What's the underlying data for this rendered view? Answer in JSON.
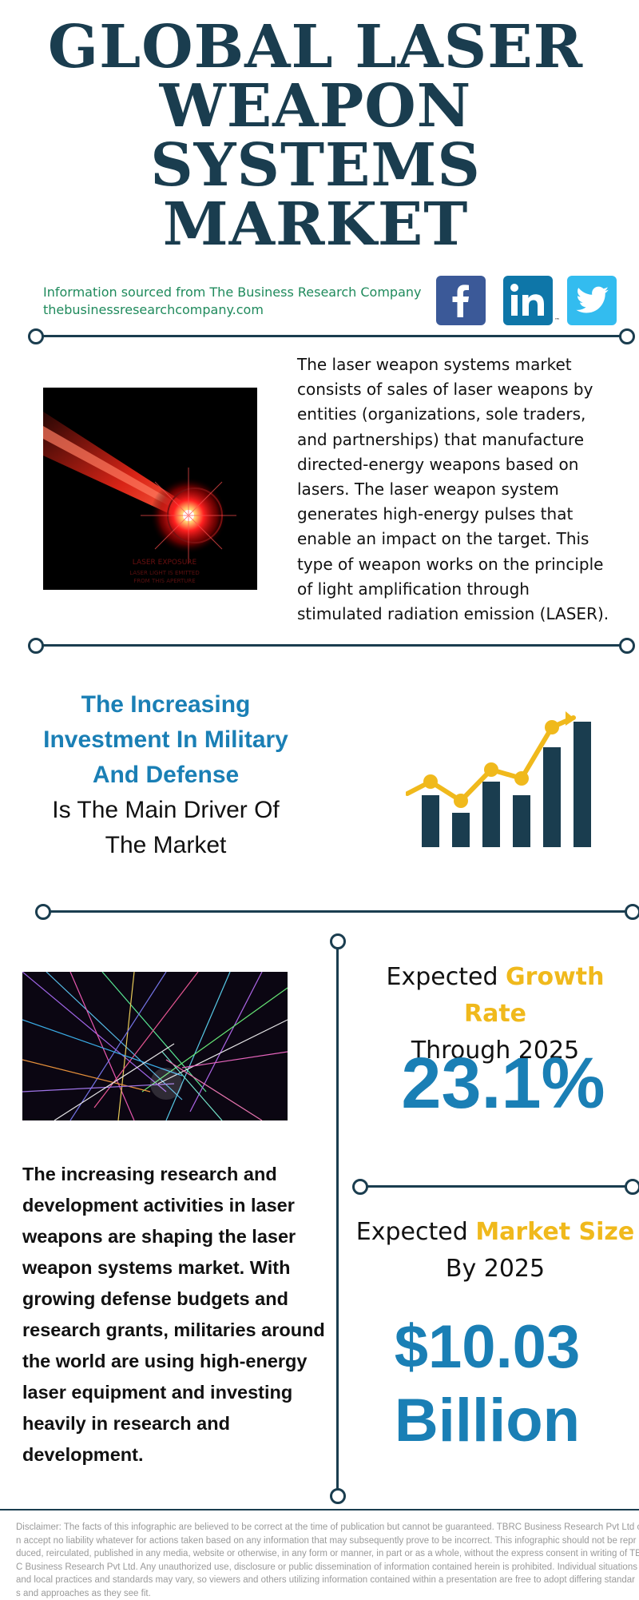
{
  "title": {
    "lines": [
      "GLOBAL LASER",
      "WEAPON",
      "SYSTEMS",
      "MARKET"
    ]
  },
  "source": {
    "line1": "Information sourced from The Business Research Company",
    "line2": "thebusinessresearchcompany.com"
  },
  "social": {
    "facebook": {
      "icon": "facebook-icon",
      "color": "#3b5998"
    },
    "linkedin": {
      "icon": "linkedin-icon",
      "color": "#0e76a8",
      "trademark": "™"
    },
    "twitter": {
      "icon": "twitter-icon",
      "color": "#33bcef"
    }
  },
  "intro": {
    "image_caption_1": "LASER EXPOSURE",
    "image_caption_2": "LASER LIGHT IS EMITTED",
    "image_caption_3": "FROM THIS APERTURE",
    "lines": [
      "The laser weapon systems market",
      "consists of sales of laser weapons by",
      "entities (organizations, sole traders,",
      "and partnerships) that manufacture",
      "directed-energy weapons based on",
      "lasers. The laser weapon system",
      "generates high-energy pulses that",
      "enable an impact on the target. This",
      "type of weapon works on the principle",
      "of light amplification through",
      "stimulated radiation emission (LASER)."
    ]
  },
  "driver": {
    "highlight_lines": [
      "The Increasing",
      "Investment In Military",
      "And Defense"
    ],
    "normal_lines": [
      "Is The Main Driver Of",
      "The Market"
    ]
  },
  "research": {
    "lines": [
      "The increasing research and",
      "development activities in laser",
      "weapons are shaping the laser",
      "weapon systems market. With",
      "growing defense budgets and",
      "research grants, militaries around",
      "the world are using high-energy",
      "laser equipment and investing",
      "heavily in research and",
      "development."
    ]
  },
  "growth": {
    "prefix": "Expected ",
    "accent": "Growth Rate",
    "sub": "Through 2025",
    "value": "23.1%"
  },
  "size": {
    "prefix": "Expected ",
    "accent": "Market Size",
    "sub": "By 2025",
    "value_line1": "$10.03",
    "value_line2": "Billion"
  },
  "colors": {
    "navy": "#1a3d4f",
    "blue": "#1a7fb5",
    "gold": "#f0b91c",
    "green": "#1f8a5c"
  },
  "disclaimer": {
    "lines": [
      "Disclaimer: The facts of this infographic are believed to be correct at the time of publication but cannot be guaranteed. TBRC Business Research Pvt Ltd c",
      "n accept no liability whatever for actions taken based on any information that may subsequently prove to be incorrect. This infographic should not be repr",
      "duced, reirculated, published in any media, website or otherwise, in any form or manner, in part or as a whole, without the express consent in writing of TB",
      "C Business Research Pvt Ltd. Any unauthorized use, disclosure or public dissemination of information contained herein is prohibited. Individual situations",
      "and local practices and standards may vary, so viewers and others utilizing information contained within a presentation are free to adopt differing standar",
      "s and approaches as they see fit."
    ]
  }
}
